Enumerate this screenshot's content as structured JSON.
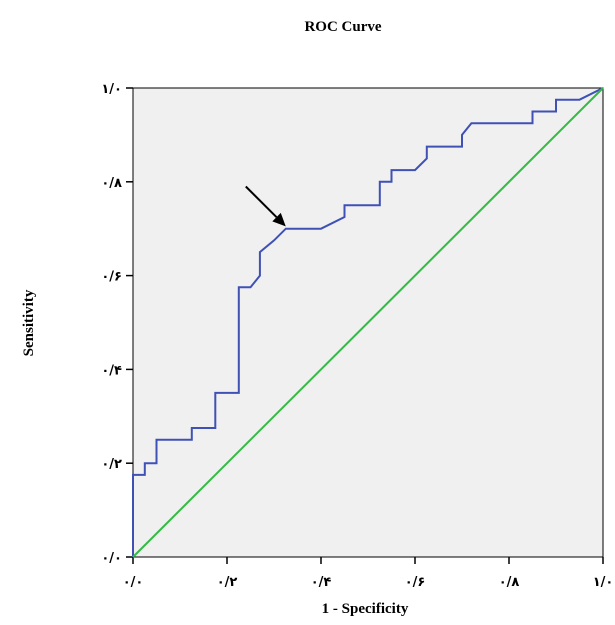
{
  "chart_data": {
    "type": "line",
    "title": "ROC Curve",
    "xlabel": "1 - Specificity",
    "ylabel": "Sensitivity",
    "xlim": [
      0,
      1
    ],
    "ylim": [
      0,
      1
    ],
    "x_ticks": [
      0,
      0.2,
      0.4,
      0.6,
      0.8,
      1.0
    ],
    "y_ticks": [
      0,
      0.2,
      0.4,
      0.6,
      0.8,
      1.0
    ],
    "x_tick_labels": [
      "۰/۰",
      "۰/۲",
      "۰/۴",
      "۰/۶",
      "۰/۸",
      "۱/۰"
    ],
    "y_tick_labels": [
      "۰/۰",
      "۰/۲",
      "۰/۴",
      "۰/۶",
      "۰/۸",
      "۱/۰"
    ],
    "grid": false,
    "plot_background": "#f0f0f0",
    "series": [
      {
        "color": "#3f51b5",
        "x": [
          0,
          0,
          0.025,
          0.025,
          0.05,
          0.05,
          0.125,
          0.125,
          0.175,
          0.175,
          0.225,
          0.225,
          0.25,
          0.27,
          0.27,
          0.3,
          0.3,
          0.325,
          0.325,
          0.4,
          0.45,
          0.45,
          0.525,
          0.525,
          0.55,
          0.55,
          0.6,
          0.625,
          0.625,
          0.7,
          0.7,
          0.72,
          0.85,
          0.85,
          0.9,
          0.9,
          0.95,
          1.0
        ],
        "y": [
          0,
          0.175,
          0.175,
          0.2,
          0.2,
          0.25,
          0.25,
          0.275,
          0.275,
          0.35,
          0.35,
          0.575,
          0.575,
          0.6,
          0.65,
          0.675,
          0.675,
          0.7,
          0.7,
          0.7,
          0.725,
          0.75,
          0.75,
          0.8,
          0.8,
          0.825,
          0.825,
          0.85,
          0.875,
          0.875,
          0.9,
          0.925,
          0.925,
          0.95,
          0.95,
          0.975,
          0.975,
          1.0
        ]
      },
      {
        "color": "#33bb44",
        "x": [
          0,
          1
        ],
        "y": [
          0,
          1
        ]
      }
    ],
    "annotations": [
      {
        "type": "arrow",
        "x": 0.325,
        "y": 0.705,
        "dx": -0.085,
        "dy": 0.085,
        "color": "#000000"
      }
    ]
  }
}
